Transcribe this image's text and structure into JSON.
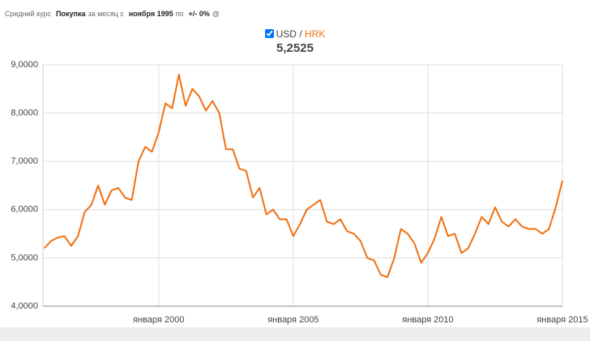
{
  "header": {
    "parts": [
      {
        "text": "Средний курс",
        "bold": false
      },
      {
        "text": "Покупка",
        "bold": true
      },
      {
        "text": "за месяц с",
        "bold": false
      },
      {
        "text": "ноября 1995",
        "bold": true
      },
      {
        "text": "по",
        "bold": false
      },
      {
        "text": "+/- 0%",
        "bold": true
      },
      {
        "text": "@",
        "bold": false
      }
    ]
  },
  "legend": {
    "base": "USD",
    "separator": "/",
    "quote": "HRK",
    "current": "5,2525"
  },
  "chart_data": {
    "type": "line",
    "color": "#f07012",
    "grid": true,
    "x": [
      1995.75,
      1996,
      1996.25,
      1996.5,
      1996.75,
      1997,
      1997.25,
      1997.5,
      1997.75,
      1998,
      1998.25,
      1998.5,
      1998.75,
      1999,
      1999.25,
      1999.5,
      1999.75,
      2000,
      2000.25,
      2000.5,
      2000.75,
      2001,
      2001.25,
      2001.5,
      2001.75,
      2002,
      2002.25,
      2002.5,
      2002.75,
      2003,
      2003.25,
      2003.5,
      2003.75,
      2004,
      2004.25,
      2004.5,
      2004.75,
      2005,
      2005.25,
      2005.5,
      2005.75,
      2006,
      2006.25,
      2006.5,
      2006.75,
      2007,
      2007.25,
      2007.5,
      2007.75,
      2008,
      2008.25,
      2008.5,
      2008.75,
      2009,
      2009.25,
      2009.5,
      2009.75,
      2010,
      2010.25,
      2010.5,
      2010.75,
      2011,
      2011.25,
      2011.5,
      2011.75,
      2012,
      2012.25,
      2012.5,
      2012.75,
      2013,
      2013.25,
      2013.5,
      2013.75,
      2014,
      2014.25,
      2014.5,
      2014.75,
      2015
    ],
    "values": [
      5.2,
      5.35,
      5.42,
      5.45,
      5.25,
      5.45,
      5.95,
      6.1,
      6.5,
      6.1,
      6.4,
      6.45,
      6.25,
      6.2,
      7.0,
      7.3,
      7.2,
      7.6,
      8.2,
      8.1,
      8.8,
      8.15,
      8.5,
      8.35,
      8.05,
      8.25,
      8.0,
      7.25,
      7.25,
      6.85,
      6.8,
      6.25,
      6.45,
      5.9,
      6.0,
      5.8,
      5.8,
      5.45,
      5.7,
      6.0,
      6.1,
      6.2,
      5.75,
      5.7,
      5.8,
      5.55,
      5.5,
      5.35,
      5.0,
      4.95,
      4.65,
      4.6,
      5.0,
      5.6,
      5.5,
      5.3,
      4.9,
      5.1,
      5.4,
      5.85,
      5.45,
      5.5,
      5.1,
      5.2,
      5.5,
      5.85,
      5.7,
      6.05,
      5.75,
      5.65,
      5.8,
      5.65,
      5.6,
      5.6,
      5.5,
      5.6,
      6.05,
      6.6
    ],
    "xlim": [
      1995.7,
      2015
    ],
    "xticks": [
      {
        "value": 2000,
        "label": "января 2000"
      },
      {
        "value": 2005,
        "label": "января 2005"
      },
      {
        "value": 2010,
        "label": "января 2010"
      },
      {
        "value": 2015,
        "label": "января 2015"
      }
    ],
    "ylim": [
      4,
      9
    ],
    "yticks": [
      {
        "value": 4,
        "label": "4,0000"
      },
      {
        "value": 5,
        "label": "5,0000"
      },
      {
        "value": 6,
        "label": "6,0000"
      },
      {
        "value": 7,
        "label": "7,0000"
      },
      {
        "value": 8,
        "label": "8,0000"
      },
      {
        "value": 9,
        "label": "9,0000"
      }
    ]
  }
}
